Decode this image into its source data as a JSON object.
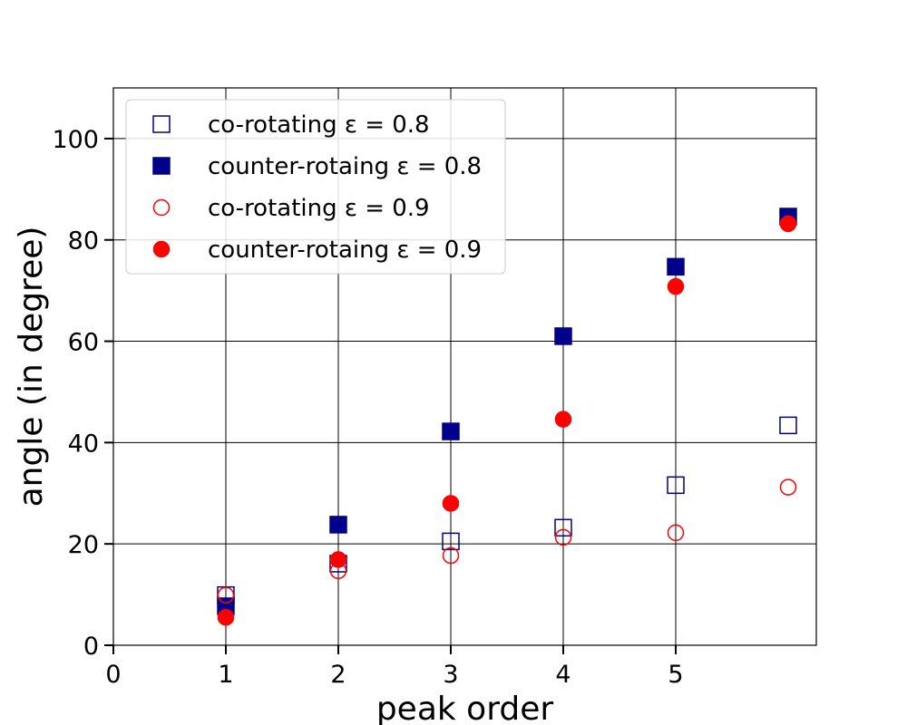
{
  "chart_data": {
    "type": "scatter",
    "title": "",
    "xlabel": "peak order",
    "ylabel": "angle (in degree)",
    "xlim": [
      0,
      6.25
    ],
    "ylim": [
      0,
      110
    ],
    "xticks": [
      "0",
      "1",
      "2",
      "3",
      "4",
      "5"
    ],
    "yticks": [
      "0",
      "20",
      "40",
      "60",
      "80",
      "100"
    ],
    "grid": true,
    "legend_position": "top-left",
    "series": [
      {
        "name": "co-rotating ε = 0.8",
        "color": "#00008b",
        "marker": "square-open",
        "x": [
          1,
          2,
          3,
          4,
          5,
          6
        ],
        "y": [
          9.9,
          16.1,
          20.5,
          23.2,
          31.6,
          43.4
        ]
      },
      {
        "name": "counter-rotaing ε = 0.8",
        "color": "#00008b",
        "marker": "square-filled",
        "x": [
          1,
          2,
          3,
          4,
          5,
          6
        ],
        "y": [
          7.7,
          23.8,
          42.2,
          61.0,
          74.7,
          84.6
        ]
      },
      {
        "name": "co-rotating ε = 0.9",
        "color": "#ff0000",
        "marker": "circle-open",
        "x": [
          1,
          2,
          3,
          4,
          5,
          6
        ],
        "y": [
          9.9,
          14.7,
          17.7,
          21.3,
          22.2,
          31.2
        ]
      },
      {
        "name": "counter-rotaing ε = 0.9",
        "color": "#ff0000",
        "marker": "circle-filled",
        "x": [
          1,
          2,
          3,
          4,
          5,
          6
        ],
        "y": [
          5.5,
          16.9,
          28.0,
          44.6,
          70.8,
          83.2
        ]
      }
    ]
  }
}
